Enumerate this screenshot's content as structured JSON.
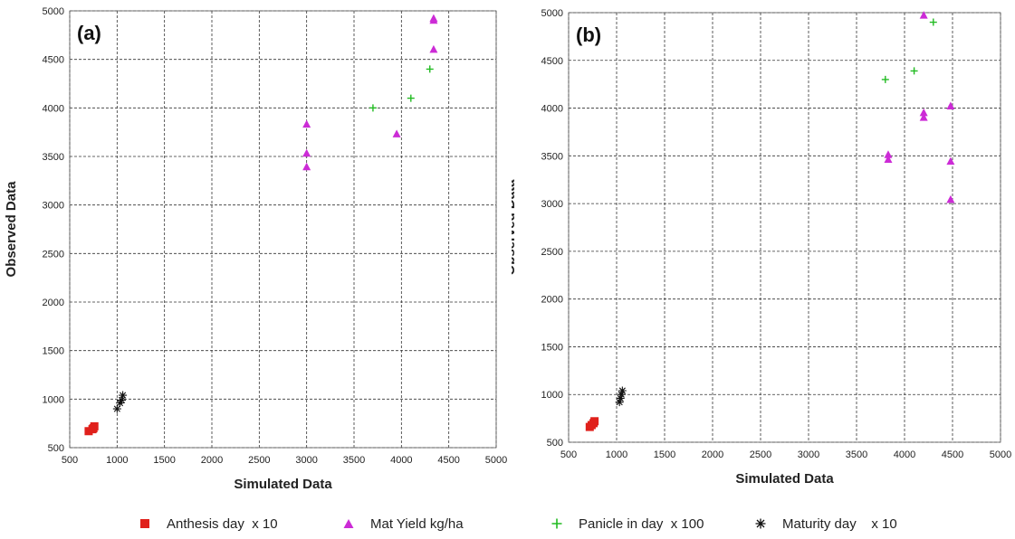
{
  "chart_data": [
    {
      "type": "scatter",
      "panel_label": "(a)",
      "xlabel": "Simulated Data",
      "ylabel": "Observed Data",
      "xlim": [
        500,
        5000
      ],
      "ylim": [
        500,
        5000
      ],
      "xticks": [
        "500",
        "1000",
        "1500",
        "2000",
        "2500",
        "3000",
        "3500",
        "4000",
        "4500",
        "5000"
      ],
      "yticks": [
        "500",
        "1000",
        "1500",
        "2000",
        "2500",
        "3000",
        "3500",
        "4000",
        "4500",
        "5000"
      ],
      "grid": true,
      "series": [
        {
          "name": "Anthesis day  x 10",
          "marker": "square",
          "color": "#e0201b",
          "points": [
            [
              700,
              670
            ],
            [
              750,
              700
            ],
            [
              760,
              720
            ],
            [
              740,
              690
            ]
          ]
        },
        {
          "name": "Mat Yield kg/ha",
          "marker": "triangle",
          "color": "#cc2bd6",
          "points": [
            [
              3000,
              3830
            ],
            [
              3000,
              3530
            ],
            [
              3000,
              3390
            ],
            [
              3950,
              3730
            ],
            [
              4340,
              4920
            ],
            [
              4340,
              4900
            ],
            [
              4340,
              4600
            ]
          ]
        },
        {
          "name": "Panicle in day  x 100",
          "marker": "plus",
          "color": "#22bb22",
          "points": [
            [
              3700,
              4000
            ],
            [
              4100,
              4100
            ],
            [
              4300,
              4400
            ]
          ]
        },
        {
          "name": "Maturity day    x 10",
          "marker": "asterisk",
          "color": "#111111",
          "points": [
            [
              1000,
              900
            ],
            [
              1030,
              960
            ],
            [
              1050,
              990
            ],
            [
              1060,
              1040
            ]
          ]
        }
      ]
    },
    {
      "type": "scatter",
      "panel_label": "(b)",
      "xlabel": "Simulated Data",
      "ylabel": "Observed Data",
      "xlim": [
        500,
        5000
      ],
      "ylim": [
        500,
        5000
      ],
      "xticks": [
        "500",
        "1000",
        "1500",
        "2000",
        "2500",
        "3000",
        "3500",
        "4000",
        "4500",
        "5000"
      ],
      "yticks": [
        "500",
        "1000",
        "1500",
        "2000",
        "2500",
        "3000",
        "3500",
        "4000",
        "4500",
        "5000"
      ],
      "grid": true,
      "series": [
        {
          "name": "Anthesis day  x 10",
          "marker": "square",
          "color": "#e0201b",
          "points": [
            [
              720,
              660
            ],
            [
              760,
              700
            ],
            [
              770,
              720
            ],
            [
              740,
              680
            ]
          ]
        },
        {
          "name": "Mat Yield kg/ha",
          "marker": "triangle",
          "color": "#cc2bd6",
          "points": [
            [
              3830,
              3510
            ],
            [
              3830,
              3460
            ],
            [
              4200,
              4970
            ],
            [
              4200,
              3950
            ],
            [
              4200,
              3900
            ],
            [
              4480,
              4020
            ],
            [
              4480,
              3440
            ],
            [
              4480,
              3040
            ]
          ]
        },
        {
          "name": "Panicle in day  x 100",
          "marker": "plus",
          "color": "#22bb22",
          "points": [
            [
              3800,
              4300
            ],
            [
              4100,
              4390
            ],
            [
              4300,
              4900
            ]
          ]
        },
        {
          "name": "Maturity day    x 10",
          "marker": "asterisk",
          "color": "#111111",
          "points": [
            [
              1030,
              920
            ],
            [
              1040,
              960
            ],
            [
              1050,
              1000
            ],
            [
              1060,
              1040
            ]
          ]
        }
      ]
    }
  ],
  "legend": [
    {
      "marker": "square",
      "color": "#e0201b",
      "label": "Anthesis day  x 10"
    },
    {
      "marker": "triangle",
      "color": "#cc2bd6",
      "label": "Mat Yield kg/ha"
    },
    {
      "marker": "plus",
      "color": "#22bb22",
      "label": "Panicle in day  x 100"
    },
    {
      "marker": "asterisk",
      "color": "#111111",
      "label": "Maturity day    x 10"
    }
  ]
}
